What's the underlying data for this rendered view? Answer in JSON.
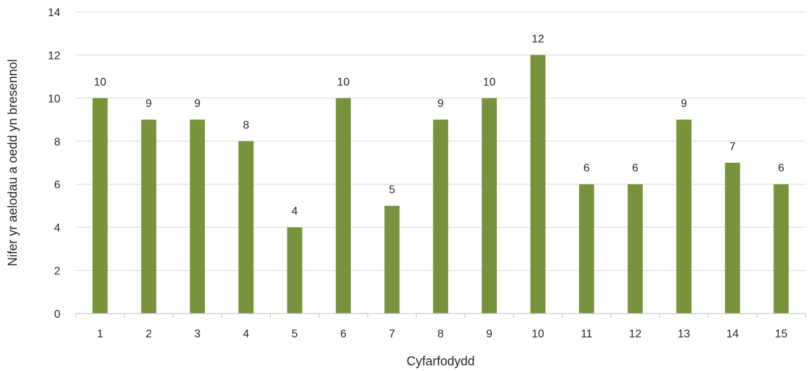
{
  "chart_data": {
    "type": "bar",
    "title": "",
    "xlabel": "Cyfarfodydd",
    "ylabel": "Nifer yr aelodau a oedd yn bresennol",
    "categories": [
      "1",
      "2",
      "3",
      "4",
      "5",
      "6",
      "7",
      "8",
      "9",
      "10",
      "11",
      "12",
      "13",
      "14",
      "15"
    ],
    "values": [
      10,
      9,
      9,
      8,
      4,
      10,
      5,
      9,
      10,
      12,
      6,
      6,
      9,
      7,
      6
    ],
    "ylim": [
      0,
      14
    ],
    "yticks": [
      0,
      2,
      4,
      6,
      8,
      10,
      12,
      14
    ],
    "grid": true,
    "legend": "none",
    "data_labels": true,
    "bar_color": "#77933c"
  }
}
